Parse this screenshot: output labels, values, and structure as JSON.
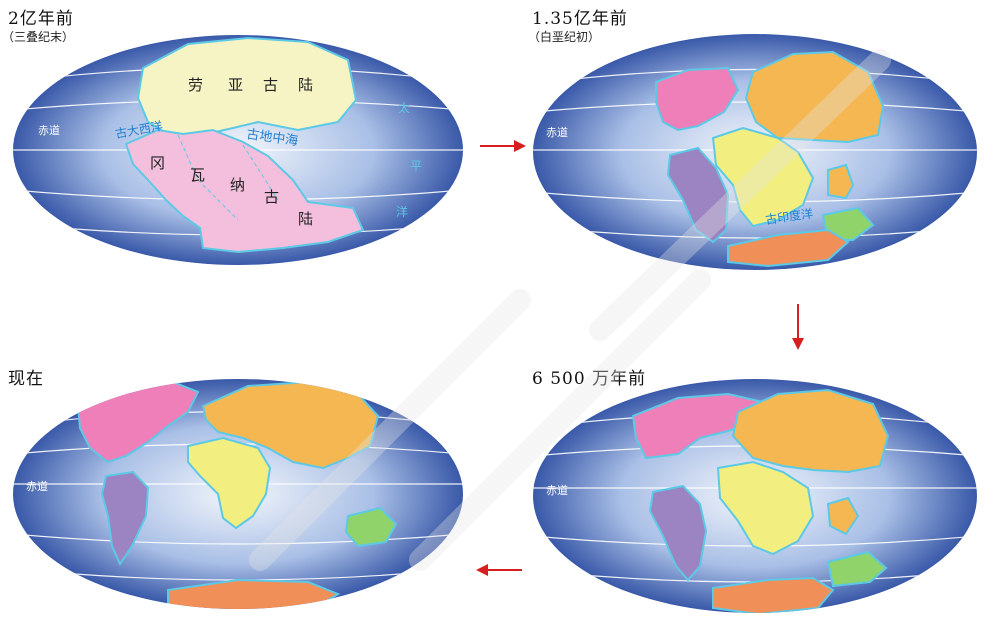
{
  "panels": [
    {
      "title": "2亿年前",
      "subtitle": "（三叠纪末）",
      "labels": {
        "equator": "赤道",
        "laurasia": [
          "劳",
          "亚",
          "古",
          "陆"
        ],
        "gondwana": [
          "冈",
          "瓦",
          "纳",
          "古",
          "陆"
        ],
        "paleo_atlantic": "古大西洋",
        "tethys": "古地中海",
        "pacific": [
          "太",
          "平",
          "洋"
        ]
      }
    },
    {
      "title": "1.35亿年前",
      "subtitle": "（白垩纪初）",
      "labels": {
        "equator": "赤道",
        "paleo_indian": "古印度洋"
      }
    },
    {
      "title": "6 500 万年前",
      "subtitle": "",
      "labels": {
        "equator": "赤道"
      }
    },
    {
      "title": "现在",
      "subtitle": "",
      "labels": {
        "equator": "赤道"
      }
    }
  ],
  "colors": {
    "ocean_edge": "#1d3f99",
    "ocean_center": "#f3f6fb",
    "laurasia": "#f6f3c4",
    "gondwana": "#f3bfdc",
    "north_america": "#ee7fb9",
    "eurasia": "#f5b752",
    "africa": "#f2ee7f",
    "south_america": "#9b84c1",
    "india": "#f5b752",
    "australia": "#8fd36a",
    "antarctica": "#f08f57",
    "coast": "#5cc9e6",
    "arrow": "#d6201f",
    "label_blue": "#1f7fd1"
  }
}
